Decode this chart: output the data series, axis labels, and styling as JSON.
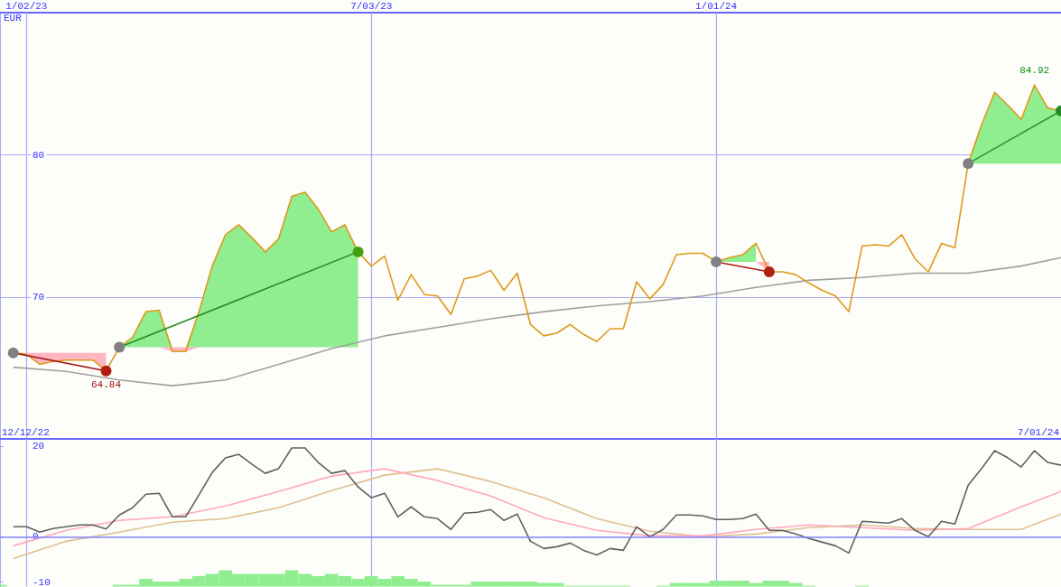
{
  "chart_data": [
    {
      "type": "line",
      "ylabel": "EUR",
      "xlim": [
        "2022-12-19",
        "2024-07-01"
      ],
      "ylim": [
        60,
        90
      ],
      "yticks": [
        70,
        80
      ],
      "xticks": [
        {
          "value": "2023-01-02",
          "label": "1/02/23"
        },
        {
          "value": "2023-07-03",
          "label": "7/03/23"
        },
        {
          "value": "2024-01-01",
          "label": "1/01/24"
        }
      ],
      "grid": true,
      "x": [
        "2022-12-26",
        "2023-01-02",
        "2023-01-09",
        "2023-01-16",
        "2023-01-23",
        "2023-01-30",
        "2023-02-06",
        "2023-02-13",
        "2023-02-20",
        "2023-02-27",
        "2023-03-06",
        "2023-03-13",
        "2023-03-20",
        "2023-03-27",
        "2023-04-03",
        "2023-04-10",
        "2023-04-17",
        "2023-04-24",
        "2023-05-01",
        "2023-05-08",
        "2023-05-15",
        "2023-05-22",
        "2023-05-29",
        "2023-06-05",
        "2023-06-12",
        "2023-06-19",
        "2023-06-26",
        "2023-07-03",
        "2023-07-10",
        "2023-07-17",
        "2023-07-24",
        "2023-07-31",
        "2023-08-07",
        "2023-08-14",
        "2023-08-21",
        "2023-08-28",
        "2023-09-04",
        "2023-09-11",
        "2023-09-18",
        "2023-09-25",
        "2023-10-02",
        "2023-10-09",
        "2023-10-16",
        "2023-10-23",
        "2023-10-30",
        "2023-11-06",
        "2023-11-13",
        "2023-11-20",
        "2023-11-27",
        "2023-12-04",
        "2023-12-11",
        "2023-12-18",
        "2023-12-25",
        "2024-01-01",
        "2024-01-08",
        "2024-01-15",
        "2024-01-22",
        "2024-01-29",
        "2024-02-05",
        "2024-02-12",
        "2024-02-19",
        "2024-02-26",
        "2024-03-04",
        "2024-03-11",
        "2024-03-18",
        "2024-03-25",
        "2024-04-01",
        "2024-04-08",
        "2024-04-15",
        "2024-04-22",
        "2024-04-29",
        "2024-05-06",
        "2024-05-13",
        "2024-05-20",
        "2024-05-27",
        "2024-06-03",
        "2024-06-10",
        "2024-06-17",
        "2024-06-24",
        "2024-07-01"
      ],
      "series": [
        {
          "type": "area",
          "color": "#ffb6c1",
          "x": [
            "2022-12-26",
            "2023-01-02",
            "2023-01-09",
            "2023-01-16",
            "2023-01-23",
            "2023-01-30",
            "2023-02-06",
            "2023-02-13"
          ],
          "values": [
            null,
            null,
            null,
            null,
            null,
            null,
            null,
            null
          ],
          "lower": [
            66.1,
            66.0,
            65.3,
            65.5,
            65.6,
            65.6,
            65.6,
            64.84
          ],
          "upper": [
            66.1,
            66.1,
            66.1,
            66.1,
            66.1,
            66.1,
            66.1,
            66.1
          ]
        },
        {
          "type": "area",
          "color": "#90ee90",
          "x": [
            "2023-02-20",
            "2023-02-27",
            "2023-03-06",
            "2023-03-13",
            "2023-03-20",
            "2023-03-27",
            "2023-04-03",
            "2023-04-10",
            "2023-04-17",
            "2023-04-24",
            "2023-05-01",
            "2023-05-08",
            "2023-05-15",
            "2023-05-22",
            "2023-05-29",
            "2023-06-05",
            "2023-06-12",
            "2023-06-19",
            "2023-06-26"
          ],
          "values": [
            null,
            null,
            null,
            null,
            null,
            null,
            null,
            null,
            null,
            null,
            null,
            null,
            null,
            null,
            null,
            null,
            null,
            null,
            null
          ],
          "lower": [
            66.5,
            66.5,
            66.5,
            66.5,
            66.5,
            66.5,
            66.5,
            66.5,
            66.5,
            66.5,
            66.5,
            66.5,
            66.5,
            66.5,
            66.5,
            66.5,
            66.5,
            66.5,
            66.5
          ],
          "upper": [
            66.5,
            67.2,
            69.0,
            69.1,
            66.5,
            66.5,
            69.0,
            72.2,
            74.4,
            75.1,
            74.2,
            73.2,
            74.1,
            77.1,
            77.4,
            76.2,
            74.6,
            75.1,
            73.2
          ]
        },
        {
          "type": "area",
          "color": "#ffb6c1",
          "x": [
            "2023-03-13",
            "2023-03-20",
            "2023-03-27",
            "2023-04-03"
          ],
          "values": [
            null,
            null,
            null,
            null
          ],
          "lower": [
            66.5,
            66.2,
            66.2,
            66.5
          ],
          "upper": [
            66.5,
            66.5,
            66.5,
            66.5
          ]
        },
        {
          "type": "area",
          "color": "#90ee90",
          "x": [
            "2024-01-01",
            "2024-01-08",
            "2024-01-15",
            "2024-01-22"
          ],
          "values": [
            null,
            null,
            null,
            null
          ],
          "lower": [
            72.5,
            72.5,
            72.5,
            72.5
          ],
          "upper": [
            72.5,
            72.8,
            73.0,
            73.8
          ]
        },
        {
          "type": "area",
          "color": "#ffb6c1",
          "x": [
            "2024-01-22",
            "2024-01-29"
          ],
          "values": [
            null,
            null
          ],
          "lower": [
            72.5,
            71.8
          ],
          "upper": [
            72.5,
            72.5
          ]
        },
        {
          "type": "area",
          "color": "#90ee90",
          "x": [
            "2024-05-13",
            "2024-05-20",
            "2024-05-27",
            "2024-06-03",
            "2024-06-10",
            "2024-06-17",
            "2024-06-24",
            "2024-07-01"
          ],
          "values": [
            null,
            null,
            null,
            null,
            null,
            null,
            null,
            null
          ],
          "lower": [
            79.4,
            79.4,
            79.4,
            79.4,
            79.4,
            79.4,
            79.4,
            79.4
          ],
          "upper": [
            79.4,
            82.1,
            84.4,
            83.5,
            82.5,
            84.92,
            83.3,
            83.1
          ]
        },
        {
          "color": "#a0a0a0",
          "x": [
            "2022-12-26",
            "2023-01-23",
            "2023-02-20",
            "2023-03-20",
            "2023-04-17",
            "2023-05-15",
            "2023-06-12",
            "2023-07-10",
            "2023-08-07",
            "2023-09-04",
            "2023-10-02",
            "2023-10-30",
            "2023-11-27",
            "2023-12-25",
            "2024-01-22",
            "2024-02-19",
            "2024-03-18",
            "2024-04-15",
            "2024-05-13",
            "2024-06-10",
            "2024-07-01"
          ],
          "values": [
            65.1,
            64.8,
            64.2,
            63.8,
            64.2,
            65.3,
            66.4,
            67.3,
            67.9,
            68.5,
            69.0,
            69.4,
            69.7,
            70.1,
            70.7,
            71.2,
            71.4,
            71.7,
            71.7,
            72.2,
            72.8
          ]
        },
        {
          "color": "#dd9a1a",
          "values": [
            66.1,
            66.0,
            65.3,
            65.5,
            65.6,
            65.6,
            65.6,
            64.84,
            66.5,
            67.2,
            69.0,
            69.1,
            66.2,
            66.2,
            69.0,
            72.2,
            74.4,
            75.1,
            74.2,
            73.2,
            74.1,
            77.1,
            77.4,
            76.2,
            74.6,
            75.1,
            73.2,
            72.2,
            72.9,
            69.8,
            71.6,
            70.2,
            70.1,
            68.8,
            71.3,
            71.5,
            71.9,
            70.5,
            71.7,
            68.1,
            67.3,
            67.5,
            68.1,
            67.4,
            66.9,
            67.8,
            67.8,
            71.1,
            69.9,
            70.9,
            73.0,
            73.1,
            73.1,
            72.5,
            72.8,
            73.0,
            73.8,
            71.8,
            71.8,
            71.6,
            71.0,
            70.5,
            70.1,
            69.0,
            73.6,
            73.7,
            73.6,
            74.4,
            72.7,
            71.8,
            73.8,
            73.5,
            79.4,
            82.1,
            84.4,
            83.5,
            82.5,
            84.92,
            83.3,
            83.1
          ]
        },
        {
          "color": "#a01010",
          "marker": "circle",
          "x": [
            "2022-12-26",
            "2023-02-13"
          ],
          "values": [
            66.1,
            64.84
          ],
          "colors": [
            "#808080",
            "#b02010"
          ]
        },
        {
          "color": "#228b22",
          "marker": "circle",
          "x": [
            "2023-02-20",
            "2023-06-26"
          ],
          "values": [
            66.5,
            73.2
          ],
          "colors": [
            "#808080",
            "#40a010"
          ]
        },
        {
          "color": "#b01818",
          "marker": "circle",
          "x": [
            "2024-01-01",
            "2024-01-29"
          ],
          "values": [
            72.5,
            71.8
          ],
          "colors": [
            "#808080",
            "#b02010"
          ]
        },
        {
          "color": "#2e9a2e",
          "marker": "circle",
          "x": [
            "2024-05-13",
            "2024-07-01"
          ],
          "values": [
            79.4,
            83.1
          ],
          "colors": [
            "#808080",
            "#228b22"
          ]
        }
      ],
      "annotations": [
        {
          "text": "64.84",
          "x": "2023-02-13",
          "y": 64.84
        },
        {
          "text": "84.92",
          "x": "2024-06-17",
          "y": 84.92
        }
      ]
    },
    {
      "type": "line",
      "xlim": [
        "2022-12-19",
        "2024-07-01"
      ],
      "ylim": [
        -11,
        21.6
      ],
      "yticks": [
        -10,
        0,
        20
      ],
      "xticks": [
        {
          "value": "2023-01-02",
          "label": null
        },
        {
          "value": "2023-07-03",
          "label": null
        },
        {
          "value": "2024-01-01",
          "label": null
        }
      ],
      "annotations": [
        "12/12/22",
        "7/01/24"
      ],
      "tick_labels": "y",
      "grid": "x",
      "ref_lines": [
        {
          "axis": "y",
          "value": 0,
          "color": "#8080ff"
        }
      ],
      "x": [
        "2022-12-26",
        "2023-01-02",
        "2023-01-09",
        "2023-01-16",
        "2023-01-23",
        "2023-01-30",
        "2023-02-06",
        "2023-02-13",
        "2023-02-20",
        "2023-02-27",
        "2023-03-06",
        "2023-03-13",
        "2023-03-20",
        "2023-03-27",
        "2023-04-03",
        "2023-04-10",
        "2023-04-17",
        "2023-04-24",
        "2023-05-01",
        "2023-05-08",
        "2023-05-15",
        "2023-05-22",
        "2023-05-29",
        "2023-06-05",
        "2023-06-12",
        "2023-06-19",
        "2023-06-26",
        "2023-07-03",
        "2023-07-10",
        "2023-07-17",
        "2023-07-24",
        "2023-07-31",
        "2023-08-07",
        "2023-08-14",
        "2023-08-21",
        "2023-08-28",
        "2023-09-04",
        "2023-09-11",
        "2023-09-18",
        "2023-09-25",
        "2023-10-02",
        "2023-10-09",
        "2023-10-16",
        "2023-10-23",
        "2023-10-30",
        "2023-11-06",
        "2023-11-13",
        "2023-11-20",
        "2023-11-27",
        "2023-12-04",
        "2023-12-11",
        "2023-12-18",
        "2023-12-25",
        "2024-01-01",
        "2024-01-08",
        "2024-01-15",
        "2024-01-22",
        "2024-01-29",
        "2024-02-05",
        "2024-02-12",
        "2024-02-19",
        "2024-02-26",
        "2024-03-04",
        "2024-03-11",
        "2024-03-18",
        "2024-03-25",
        "2024-04-01",
        "2024-04-08",
        "2024-04-15",
        "2024-04-22",
        "2024-04-29",
        "2024-05-06",
        "2024-05-13",
        "2024-05-20",
        "2024-05-27",
        "2024-06-03",
        "2024-06-10",
        "2024-06-17",
        "2024-06-24",
        "2024-07-01"
      ],
      "series": [
        {
          "type": "bar",
          "color": "#90ee90",
          "x": [
            "2022-12-19",
            "2023-02-20",
            "2023-02-27",
            "2023-03-06",
            "2023-03-13",
            "2023-03-20",
            "2023-03-27",
            "2023-04-03",
            "2023-04-10",
            "2023-04-17",
            "2023-04-24",
            "2023-05-01",
            "2023-05-08",
            "2023-05-15",
            "2023-05-22",
            "2023-05-29",
            "2023-06-05",
            "2023-06-12",
            "2023-06-19",
            "2023-06-26",
            "2023-07-03",
            "2023-07-10",
            "2023-07-17",
            "2023-07-24",
            "2023-07-31",
            "2023-08-07",
            "2023-08-14",
            "2023-08-21",
            "2023-08-28",
            "2023-09-04",
            "2023-09-11",
            "2023-09-18",
            "2023-09-25",
            "2023-10-02",
            "2023-10-09",
            "2023-10-16",
            "2023-10-23",
            "2023-10-30",
            "2023-11-06",
            "2023-11-13",
            "2023-12-04",
            "2023-12-11",
            "2023-12-18",
            "2023-12-25",
            "2024-01-01",
            "2024-01-08",
            "2024-01-15",
            "2024-01-22",
            "2024-01-29",
            "2024-02-05",
            "2024-02-12",
            "2024-02-19",
            "2024-03-18"
          ],
          "values": [
            0.4,
            0.4,
            0.4,
            1.7,
            1.1,
            1.1,
            1.7,
            2.3,
            2.8,
            3.6,
            2.8,
            2.8,
            2.8,
            2.8,
            3.6,
            2.8,
            2.3,
            2.8,
            2.3,
            1.7,
            2.3,
            1.7,
            2.3,
            1.7,
            1.1,
            0.4,
            0.4,
            0.4,
            1.1,
            1.1,
            1.1,
            1.1,
            1.1,
            0.8,
            0.8,
            0.2,
            0.2,
            0.2,
            0.2,
            0.2,
            0.2,
            0.8,
            0.8,
            0.8,
            1.3,
            1.3,
            1.3,
            0.8,
            1.3,
            1.3,
            0.8,
            0.2,
            0.2
          ],
          "base": [
            -11,
            -11,
            -11,
            -11,
            -11,
            -11,
            -11,
            -11,
            -11,
            -11,
            -11,
            -11,
            -11,
            -11,
            -11,
            -11,
            -11,
            -11,
            -11,
            -11,
            -11,
            -11,
            -11,
            -11,
            -11,
            -11,
            -11,
            -11,
            -11,
            -11,
            -11,
            -11,
            -11,
            -11,
            -11,
            -11,
            -11,
            -11,
            -11,
            -11,
            -11,
            -11,
            -11,
            -11,
            -11,
            -11,
            -11,
            -11,
            -11,
            -11,
            -11,
            -11,
            -11
          ]
        },
        {
          "color": "#e0c090",
          "x": [
            "2022-12-26",
            "2023-01-23",
            "2023-02-20",
            "2023-03-20",
            "2023-04-17",
            "2023-05-15",
            "2023-06-12",
            "2023-07-10",
            "2023-08-07",
            "2023-09-04",
            "2023-10-02",
            "2023-10-30",
            "2023-11-27",
            "2023-12-25",
            "2024-01-22",
            "2024-02-19",
            "2024-03-18",
            "2024-04-15",
            "2024-05-13",
            "2024-06-10",
            "2024-07-01"
          ],
          "values": [
            -4.8,
            -1.0,
            1.0,
            3.2,
            4.0,
            6.4,
            10.2,
            13.6,
            15.0,
            12.2,
            8.6,
            4.0,
            1.2,
            0.0,
            0.6,
            2.0,
            2.6,
            1.8,
            1.6,
            1.6,
            5.0
          ]
        },
        {
          "color": "#ffa8c0",
          "x": [
            "2022-12-26",
            "2023-01-23",
            "2023-02-20",
            "2023-03-20",
            "2023-04-17",
            "2023-05-15",
            "2023-06-12",
            "2023-07-10",
            "2023-08-07",
            "2023-09-04",
            "2023-10-02",
            "2023-10-30",
            "2023-11-27",
            "2023-12-25",
            "2024-01-22",
            "2024-02-19",
            "2024-03-18",
            "2024-04-15",
            "2024-05-13",
            "2024-06-10",
            "2024-07-01"
          ],
          "values": [
            -2.0,
            1.4,
            3.6,
            4.4,
            6.8,
            10.0,
            13.4,
            15.0,
            12.4,
            9.0,
            4.2,
            1.4,
            0.2,
            0.2,
            1.6,
            2.6,
            2.0,
            1.4,
            1.8,
            6.6,
            10.0
          ]
        },
        {
          "color": "#606060",
          "values": [
            2.2,
            2.2,
            1.0,
            1.8,
            2.2,
            2.6,
            2.6,
            1.7,
            4.8,
            6.4,
            9.4,
            9.6,
            4.4,
            4.4,
            9.2,
            14.2,
            17.4,
            18.2,
            16.0,
            14.0,
            15.0,
            19.6,
            19.6,
            16.4,
            14.0,
            14.6,
            11.0,
            8.6,
            9.6,
            4.4,
            6.6,
            4.4,
            4.0,
            1.6,
            5.2,
            5.4,
            6.0,
            3.6,
            5.0,
            -1.0,
            -2.6,
            -2.2,
            -1.4,
            -3.0,
            -4.0,
            -2.6,
            -3.0,
            2.2,
            0.0,
            1.6,
            4.8,
            4.8,
            4.6,
            3.8,
            3.8,
            4.0,
            5.0,
            1.4,
            1.4,
            0.6,
            -0.4,
            -1.2,
            -2.0,
            -3.6,
            3.4,
            3.2,
            3.0,
            4.0,
            1.4,
            0.0,
            3.4,
            2.8,
            11.4,
            15.0,
            19.0,
            17.4,
            15.4,
            19.0,
            16.4,
            15.8
          ]
        }
      ]
    }
  ]
}
